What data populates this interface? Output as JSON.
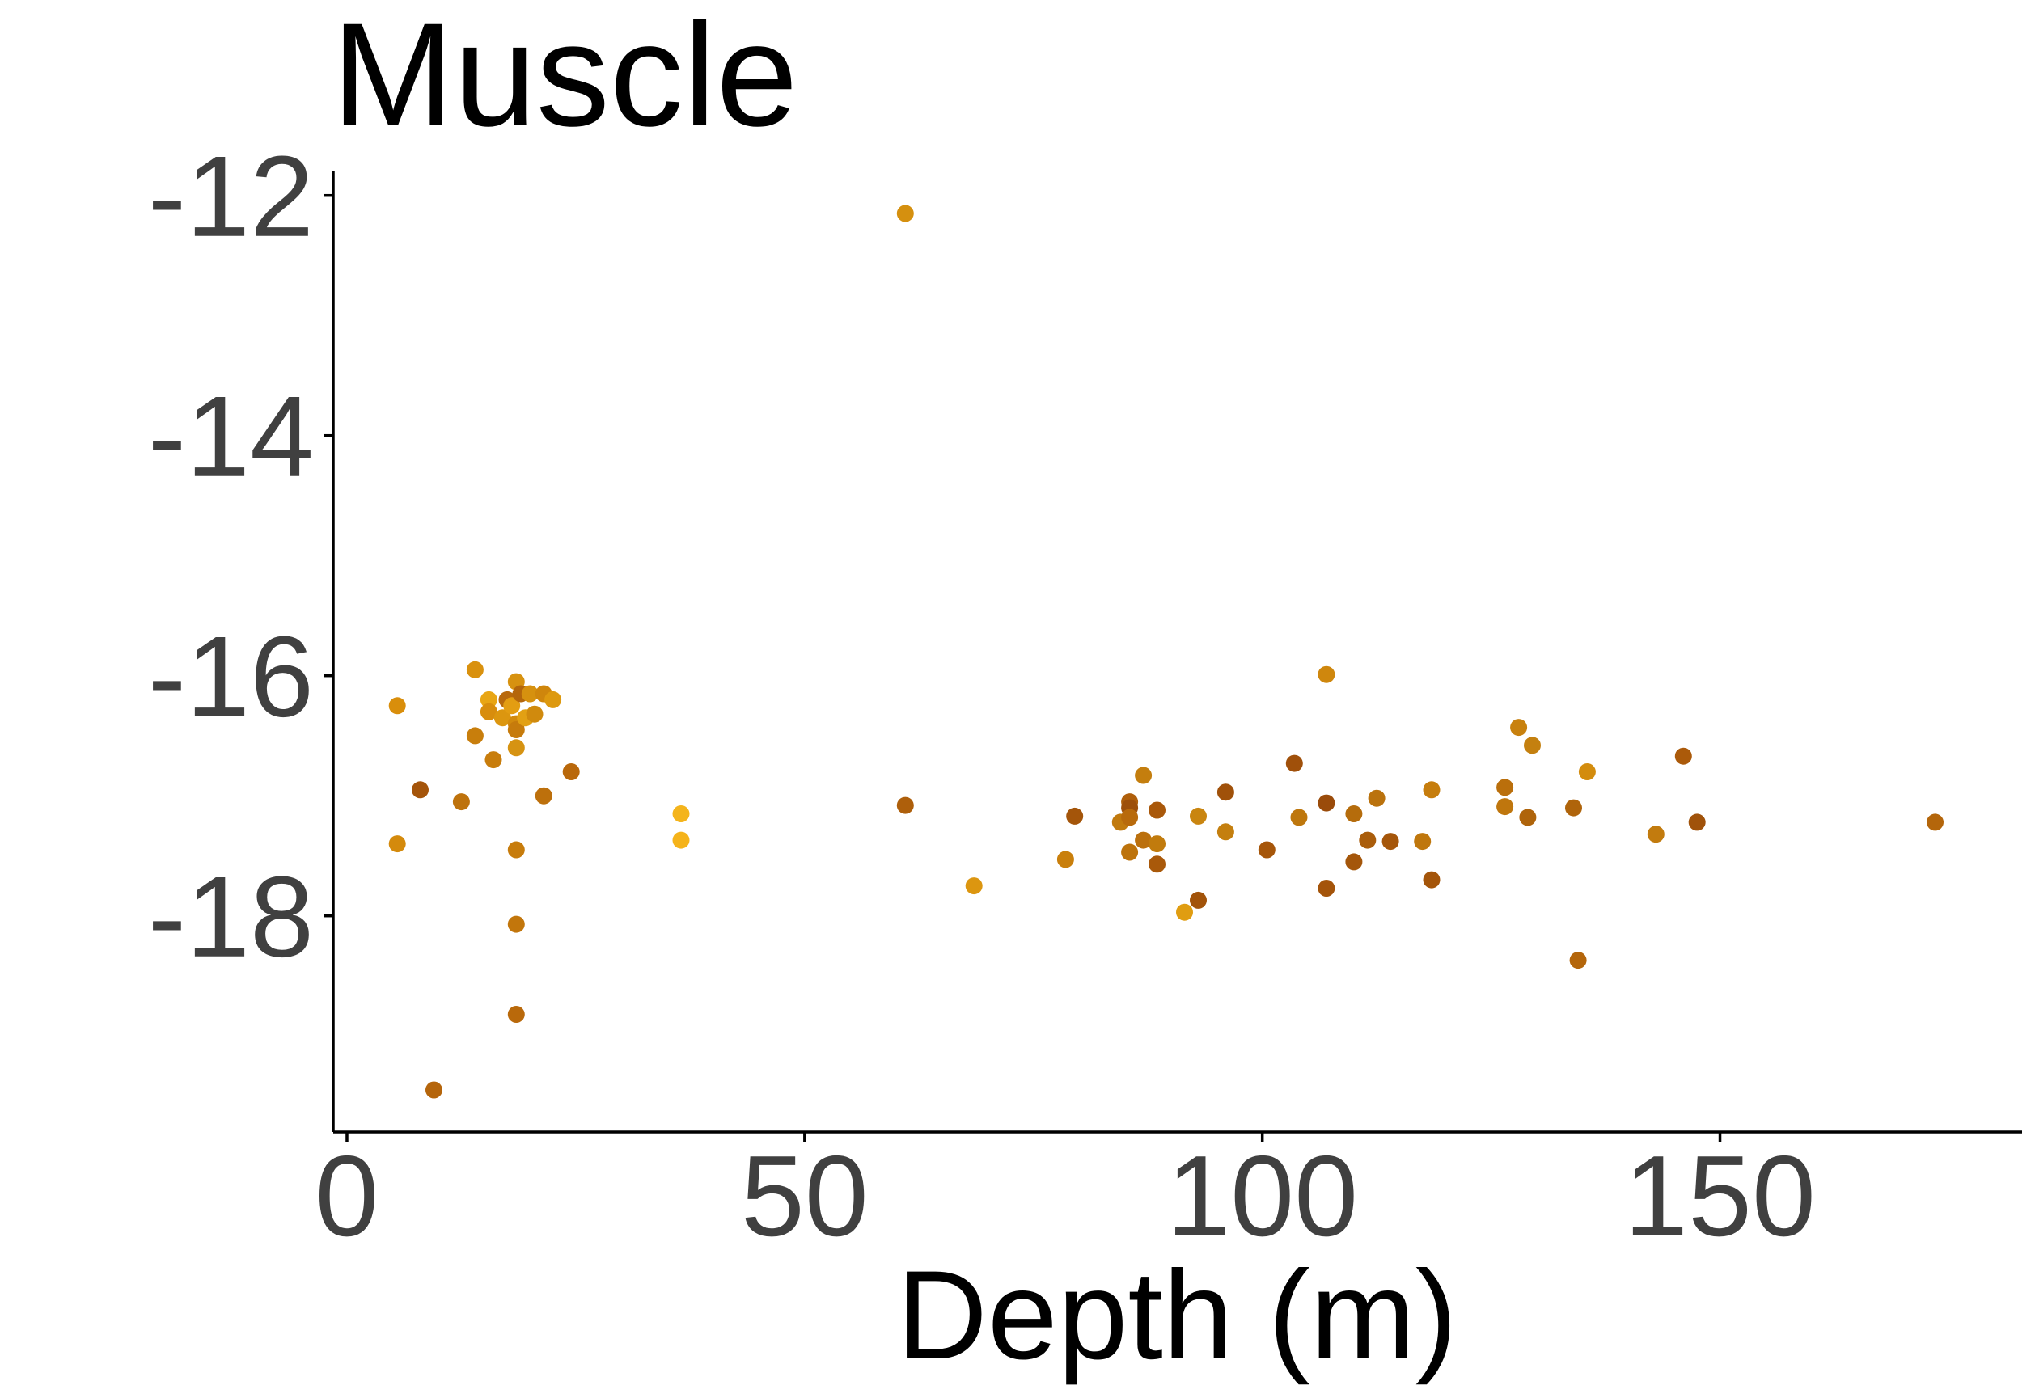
{
  "chart_data": {
    "type": "scatter",
    "title": "Muscle",
    "xlabel": "Depth (m)",
    "ylabel": "",
    "xlim": [
      -1.5,
      183
    ],
    "ylim": [
      -19.8,
      -11.8
    ],
    "x_ticks": [
      0,
      50,
      100,
      150
    ],
    "y_ticks": [
      -12,
      -14,
      -16,
      -18
    ],
    "x_tick_labels": [
      "0",
      "50",
      "100",
      "150"
    ],
    "y_tick_labels": [
      "-12",
      "-14",
      "-16",
      "-18"
    ],
    "grid": false,
    "legend": "none",
    "points": [
      {
        "x": 5.5,
        "y": -16.25,
        "color": "#D98E0B"
      },
      {
        "x": 5.5,
        "y": -17.4,
        "color": "#D48A0C"
      },
      {
        "x": 8,
        "y": -16.95,
        "color": "#A4540A"
      },
      {
        "x": 9.5,
        "y": -19.45,
        "color": "#B5650B"
      },
      {
        "x": 12.5,
        "y": -17.05,
        "color": "#BE720C"
      },
      {
        "x": 14,
        "y": -15.95,
        "color": "#D9910E"
      },
      {
        "x": 14,
        "y": -16.5,
        "color": "#C87E0C"
      },
      {
        "x": 15.5,
        "y": -16.2,
        "color": "#E8A514"
      },
      {
        "x": 15.5,
        "y": -16.3,
        "color": "#D88D0D"
      },
      {
        "x": 16,
        "y": -16.7,
        "color": "#C87D0C"
      },
      {
        "x": 17,
        "y": -16.35,
        "color": "#DC960F"
      },
      {
        "x": 17.5,
        "y": -16.2,
        "color": "#B8690C"
      },
      {
        "x": 18,
        "y": -16.25,
        "color": "#E39D12"
      },
      {
        "x": 18.5,
        "y": -16.4,
        "color": "#D28A0D"
      },
      {
        "x": 18.5,
        "y": -16.05,
        "color": "#D79210"
      },
      {
        "x": 18.5,
        "y": -16.45,
        "color": "#C67B0C"
      },
      {
        "x": 18.5,
        "y": -16.6,
        "color": "#D69312"
      },
      {
        "x": 18.5,
        "y": -17.45,
        "color": "#C77C0C"
      },
      {
        "x": 18.5,
        "y": -18.07,
        "color": "#C2760C"
      },
      {
        "x": 18.5,
        "y": -18.82,
        "color": "#B9690B"
      },
      {
        "x": 19,
        "y": -16.15,
        "color": "#B4660B"
      },
      {
        "x": 19.5,
        "y": -16.35,
        "color": "#E2A013"
      },
      {
        "x": 20,
        "y": -16.15,
        "color": "#D6910F"
      },
      {
        "x": 20.5,
        "y": -16.32,
        "color": "#D08A0D"
      },
      {
        "x": 21.5,
        "y": -16.15,
        "color": "#CF860C"
      },
      {
        "x": 21.5,
        "y": -17.0,
        "color": "#BD700C"
      },
      {
        "x": 22.5,
        "y": -16.2,
        "color": "#DD990F"
      },
      {
        "x": 24.5,
        "y": -16.8,
        "color": "#B9680B"
      },
      {
        "x": 36.5,
        "y": -17.15,
        "color": "#F4B41C"
      },
      {
        "x": 36.5,
        "y": -17.37,
        "color": "#F5B31A"
      },
      {
        "x": 61,
        "y": -12.15,
        "color": "#D5900F"
      },
      {
        "x": 61,
        "y": -17.08,
        "color": "#AE5F0B"
      },
      {
        "x": 68.5,
        "y": -17.75,
        "color": "#DC9610"
      },
      {
        "x": 78.5,
        "y": -17.53,
        "color": "#C97F0C"
      },
      {
        "x": 79.5,
        "y": -17.17,
        "color": "#A4550A"
      },
      {
        "x": 84.5,
        "y": -17.22,
        "color": "#C17A0E"
      },
      {
        "x": 85.5,
        "y": -17.05,
        "color": "#AF5F0B"
      },
      {
        "x": 85.5,
        "y": -17.1,
        "color": "#9D4F0A"
      },
      {
        "x": 85.5,
        "y": -17.18,
        "color": "#B86A0C"
      },
      {
        "x": 85.5,
        "y": -17.47,
        "color": "#BD730C"
      },
      {
        "x": 87,
        "y": -16.83,
        "color": "#C47E0E"
      },
      {
        "x": 87,
        "y": -17.37,
        "color": "#BB700D"
      },
      {
        "x": 88.5,
        "y": -17.12,
        "color": "#A9580A"
      },
      {
        "x": 88.5,
        "y": -17.4,
        "color": "#C17B0D"
      },
      {
        "x": 88.5,
        "y": -17.57,
        "color": "#A9590A"
      },
      {
        "x": 91.5,
        "y": -17.97,
        "color": "#E09D11"
      },
      {
        "x": 93,
        "y": -17.87,
        "color": "#A2530A"
      },
      {
        "x": 93,
        "y": -17.17,
        "color": "#C98510"
      },
      {
        "x": 96,
        "y": -16.97,
        "color": "#A0510A"
      },
      {
        "x": 96,
        "y": -17.3,
        "color": "#C47F0F"
      },
      {
        "x": 100.5,
        "y": -17.45,
        "color": "#A6560A"
      },
      {
        "x": 103.5,
        "y": -16.73,
        "color": "#A0500A"
      },
      {
        "x": 104,
        "y": -17.18,
        "color": "#BE770D"
      },
      {
        "x": 107,
        "y": -15.99,
        "color": "#CF870D"
      },
      {
        "x": 107,
        "y": -17.06,
        "color": "#9A4B0A"
      },
      {
        "x": 107,
        "y": -17.77,
        "color": "#A4540A"
      },
      {
        "x": 110,
        "y": -17.55,
        "color": "#A4560A"
      },
      {
        "x": 110,
        "y": -17.15,
        "color": "#B56C0C"
      },
      {
        "x": 111.5,
        "y": -17.37,
        "color": "#AA5D0B"
      },
      {
        "x": 112.5,
        "y": -17.02,
        "color": "#BA720D"
      },
      {
        "x": 114,
        "y": -17.38,
        "color": "#A5560A"
      },
      {
        "x": 117.5,
        "y": -17.38,
        "color": "#BF770D"
      },
      {
        "x": 118.5,
        "y": -16.95,
        "color": "#C67D0D"
      },
      {
        "x": 118.5,
        "y": -17.7,
        "color": "#A4550A"
      },
      {
        "x": 126.5,
        "y": -16.93,
        "color": "#BA6F0C"
      },
      {
        "x": 126.5,
        "y": -17.09,
        "color": "#BF760D"
      },
      {
        "x": 128,
        "y": -16.43,
        "color": "#C8810E"
      },
      {
        "x": 129,
        "y": -17.18,
        "color": "#AF640B"
      },
      {
        "x": 129.5,
        "y": -16.58,
        "color": "#C4800F"
      },
      {
        "x": 134,
        "y": -17.1,
        "color": "#AF640B"
      },
      {
        "x": 134.5,
        "y": -18.37,
        "color": "#B4660B"
      },
      {
        "x": 135.5,
        "y": -16.8,
        "color": "#D38C0E"
      },
      {
        "x": 143,
        "y": -17.32,
        "color": "#C27B0E"
      },
      {
        "x": 146,
        "y": -16.67,
        "color": "#AB5A0A"
      },
      {
        "x": 147.5,
        "y": -17.22,
        "color": "#A0520A"
      },
      {
        "x": 173.5,
        "y": -17.22,
        "color": "#B4660B"
      }
    ]
  }
}
